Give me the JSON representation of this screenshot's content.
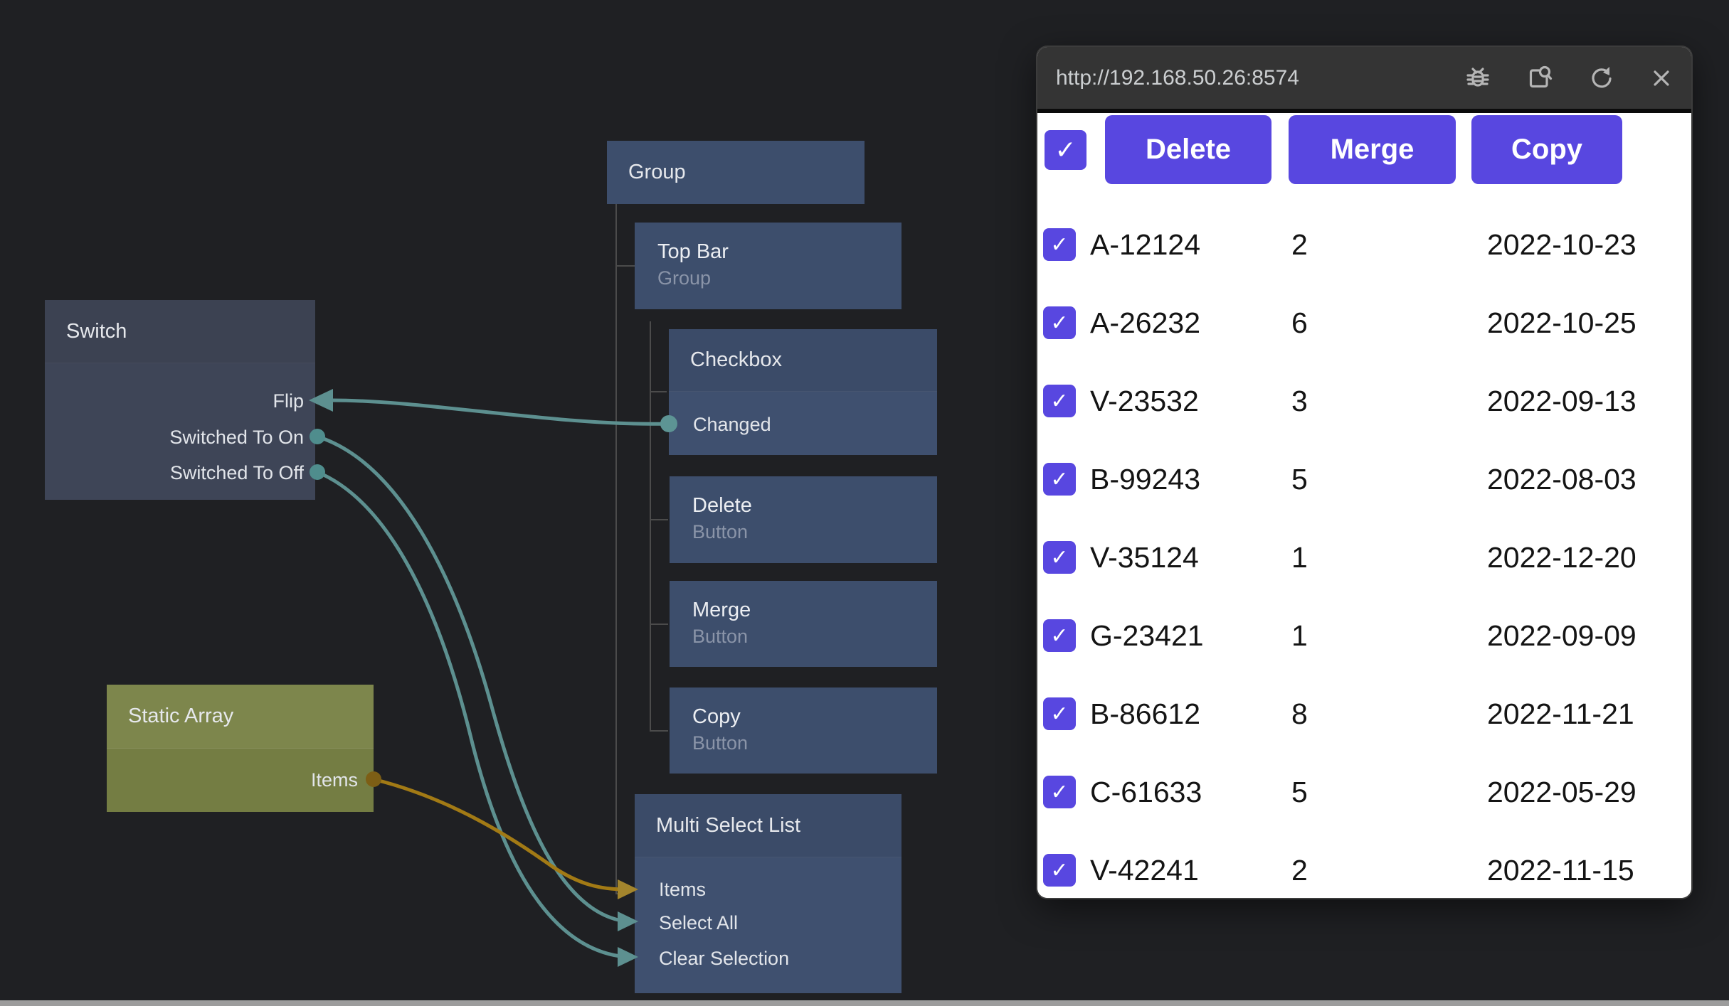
{
  "editor": {
    "nodes": {
      "switch": {
        "title": "Switch",
        "ports": [
          {
            "label": "Flip"
          },
          {
            "label": "Switched To On"
          },
          {
            "label": "Switched To Off"
          }
        ]
      },
      "group": {
        "title": "Group"
      },
      "top_bar": {
        "title": "Top Bar",
        "subtitle": "Group"
      },
      "checkbox": {
        "title": "Checkbox",
        "ports": [
          {
            "label": "Changed"
          }
        ]
      },
      "delete_button": {
        "title": "Delete",
        "subtitle": "Button"
      },
      "merge_button": {
        "title": "Merge",
        "subtitle": "Button"
      },
      "copy_button": {
        "title": "Copy",
        "subtitle": "Button"
      },
      "multi_select_list": {
        "title": "Multi Select List",
        "ports": [
          {
            "label": "Items"
          },
          {
            "label": "Select All"
          },
          {
            "label": "Clear Selection"
          }
        ]
      },
      "static_array": {
        "title": "Static Array",
        "ports": [
          {
            "label": "Items"
          }
        ]
      }
    },
    "colors": {
      "wire_teal": "#5d9090",
      "wire_gold": "#a27a15",
      "node_blue": "#3d4e6c",
      "node_slate": "#3e4557",
      "node_olive": "#747d43"
    }
  },
  "browser": {
    "url": "http://192.168.50.26:8574",
    "accent": "#5847e0",
    "icons": [
      "bug-icon",
      "inspect-icon",
      "refresh-icon",
      "close-icon"
    ],
    "toolbar": {
      "select_all_checked": true,
      "delete_label": "Delete",
      "merge_label": "Merge",
      "copy_label": "Copy"
    },
    "check_glyph": "✓",
    "rows": [
      {
        "checked": true,
        "id": "A-12124",
        "qty": "2",
        "date": "2022-10-23"
      },
      {
        "checked": true,
        "id": "A-26232",
        "qty": "6",
        "date": "2022-10-25"
      },
      {
        "checked": true,
        "id": "V-23532",
        "qty": "3",
        "date": "2022-09-13"
      },
      {
        "checked": true,
        "id": "B-99243",
        "qty": "5",
        "date": "2022-08-03"
      },
      {
        "checked": true,
        "id": "V-35124",
        "qty": "1",
        "date": "2022-12-20"
      },
      {
        "checked": true,
        "id": "G-23421",
        "qty": "1",
        "date": "2022-09-09"
      },
      {
        "checked": true,
        "id": "B-86612",
        "qty": "8",
        "date": "2022-11-21"
      },
      {
        "checked": true,
        "id": "C-61633",
        "qty": "5",
        "date": "2022-05-29"
      },
      {
        "checked": true,
        "id": "V-42241",
        "qty": "2",
        "date": "2022-11-15"
      }
    ]
  }
}
